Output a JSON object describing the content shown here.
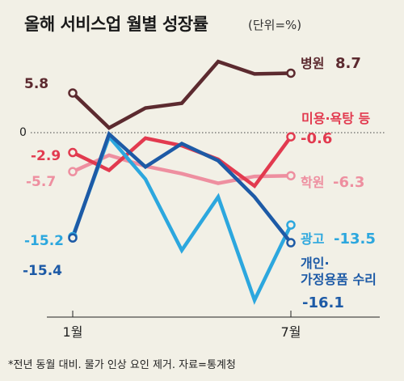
{
  "header": {
    "title": "올해 서비스업 월별 성장률",
    "unit": "(단위=%)"
  },
  "footnote": "*전년 동월 대비. 물가 인상 요인 제거. 자료=통계청",
  "chart_data": {
    "type": "line",
    "x": [
      1,
      2,
      3,
      4,
      5,
      6,
      7
    ],
    "x_tick_labels": [
      "1월",
      "7월"
    ],
    "zero_label": "0",
    "series": [
      {
        "name": "병원",
        "values": [
          5.8,
          0.7,
          3.6,
          4.3,
          10.4,
          8.6,
          8.7
        ],
        "first_label": "5.8",
        "last_label": "8.7",
        "color": "#5c2a2f"
      },
      {
        "name": "미용·욕탕 등",
        "values": [
          -2.9,
          -5.5,
          -0.8,
          -1.9,
          -3.9,
          -7.8,
          -0.6
        ],
        "first_label": "-2.9",
        "last_label": "-0.6",
        "color": "#e23a4f"
      },
      {
        "name": "학원",
        "values": [
          -5.7,
          -3.3,
          -4.9,
          -6.0,
          -7.4,
          -6.4,
          -6.3
        ],
        "first_label": "-5.7",
        "last_label": "-6.3",
        "color": "#ee8fa0"
      },
      {
        "name": "광고",
        "values": [
          -15.2,
          -0.6,
          -6.8,
          -17.2,
          -9.4,
          -24.5,
          -13.5
        ],
        "first_label": "-15.2",
        "last_label": "-13.5",
        "color": "#2ca7de"
      },
      {
        "name": "개인·\n가정용품 수리",
        "values": [
          -15.4,
          -0.2,
          -5.0,
          -1.6,
          -4.1,
          -9.4,
          -16.1
        ],
        "first_label": "-15.4",
        "last_label": "-16.1",
        "color": "#1d5aa6"
      }
    ],
    "ylim": [
      -27,
      14
    ],
    "grid": false
  }
}
